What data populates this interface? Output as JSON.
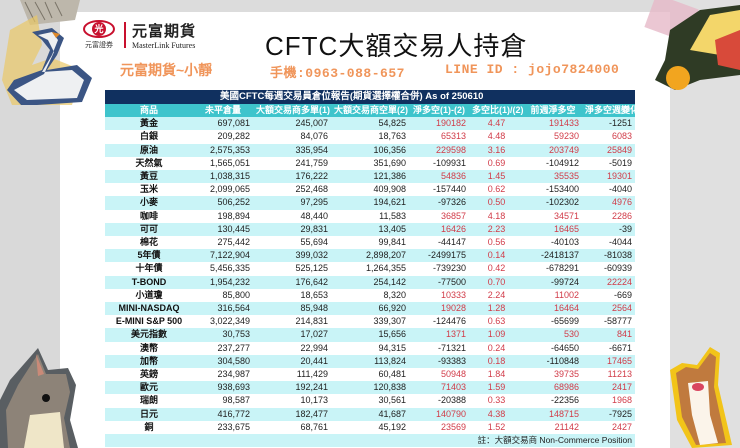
{
  "header": {
    "logo": {
      "mark_text": "光",
      "mark_sub": "元富證券",
      "name_cn": "元富期貨",
      "name_en": "MasterLink Futures"
    },
    "title": "CFTC大額交易人持倉",
    "agent": "元富期貨~小靜",
    "phone": "手機:0963-088-657",
    "line_id": "LINE ID : jojo7824000"
  },
  "table": {
    "caption": "美國CFTC每週交易員倉位報告(期貨選擇權合併) As of  250610",
    "columns": [
      "商品",
      "未平倉量",
      "大額交易商多單(1)",
      "大額交易商空單(2)",
      "淨多空(1)-(2)",
      "多空比(1)/(2)",
      "前週淨多空",
      "淨多空週變化"
    ],
    "rows": [
      {
        "name": "黃金",
        "oi": "697,081",
        "long": "245,007",
        "short": "54,825",
        "net": "190182",
        "ratio": "4.47",
        "prev": "191433",
        "chg": "-1251"
      },
      {
        "name": "白銀",
        "oi": "209,282",
        "long": "84,076",
        "short": "18,763",
        "net": "65313",
        "ratio": "4.48",
        "prev": "59230",
        "chg": "6083"
      },
      {
        "name": "原油",
        "oi": "2,575,353",
        "long": "335,954",
        "short": "106,356",
        "net": "229598",
        "ratio": "3.16",
        "prev": "203749",
        "chg": "25849"
      },
      {
        "name": "天然氣",
        "oi": "1,565,051",
        "long": "241,759",
        "short": "351,690",
        "net": "-109931",
        "ratio": "0.69",
        "prev": "-104912",
        "chg": "-5019"
      },
      {
        "name": "黃豆",
        "oi": "1,038,315",
        "long": "176,222",
        "short": "121,386",
        "net": "54836",
        "ratio": "1.45",
        "prev": "35535",
        "chg": "19301"
      },
      {
        "name": "玉米",
        "oi": "2,099,065",
        "long": "252,468",
        "short": "409,908",
        "net": "-157440",
        "ratio": "0.62",
        "prev": "-153400",
        "chg": "-4040"
      },
      {
        "name": "小麥",
        "oi": "506,252",
        "long": "97,295",
        "short": "194,621",
        "net": "-97326",
        "ratio": "0.50",
        "prev": "-102302",
        "chg": "4976"
      },
      {
        "name": "咖啡",
        "oi": "198,894",
        "long": "48,440",
        "short": "11,583",
        "net": "36857",
        "ratio": "4.18",
        "prev": "34571",
        "chg": "2286"
      },
      {
        "name": "可可",
        "oi": "130,445",
        "long": "29,831",
        "short": "13,405",
        "net": "16426",
        "ratio": "2.23",
        "prev": "16465",
        "chg": "-39"
      },
      {
        "name": "棉花",
        "oi": "275,442",
        "long": "55,694",
        "short": "99,841",
        "net": "-44147",
        "ratio": "0.56",
        "prev": "-40103",
        "chg": "-4044"
      },
      {
        "name": "5年債",
        "oi": "7,122,904",
        "long": "399,032",
        "short": "2,898,207",
        "net": "-2499175",
        "ratio": "0.14",
        "prev": "-2418137",
        "chg": "-81038"
      },
      {
        "name": "十年債",
        "oi": "5,456,335",
        "long": "525,125",
        "short": "1,264,355",
        "net": "-739230",
        "ratio": "0.42",
        "prev": "-678291",
        "chg": "-60939"
      },
      {
        "name": "T-BOND",
        "oi": "1,954,232",
        "long": "176,642",
        "short": "254,142",
        "net": "-77500",
        "ratio": "0.70",
        "prev": "-99724",
        "chg": "22224"
      },
      {
        "name": "小道瓊",
        "oi": "85,800",
        "long": "18,653",
        "short": "8,320",
        "net": "10333",
        "ratio": "2.24",
        "prev": "11002",
        "chg": "-669"
      },
      {
        "name": "MINI-NASDAQ",
        "oi": "316,564",
        "long": "85,948",
        "short": "66,920",
        "net": "19028",
        "ratio": "1.28",
        "prev": "16464",
        "chg": "2564"
      },
      {
        "name": "E-MINI S&P 500",
        "oi": "3,022,349",
        "long": "214,831",
        "short": "339,307",
        "net": "-124476",
        "ratio": "0.63",
        "prev": "-65699",
        "chg": "-58777"
      },
      {
        "name": "美元指數",
        "oi": "30,753",
        "long": "17,027",
        "short": "15,656",
        "net": "1371",
        "ratio": "1.09",
        "prev": "530",
        "chg": "841"
      },
      {
        "name": "澳幣",
        "oi": "237,277",
        "long": "22,994",
        "short": "94,315",
        "net": "-71321",
        "ratio": "0.24",
        "prev": "-64650",
        "chg": "-6671"
      },
      {
        "name": "加幣",
        "oi": "304,580",
        "long": "20,441",
        "short": "113,824",
        "net": "-93383",
        "ratio": "0.18",
        "prev": "-110848",
        "chg": "17465"
      },
      {
        "name": "英鎊",
        "oi": "234,987",
        "long": "111,429",
        "short": "60,481",
        "net": "50948",
        "ratio": "1.84",
        "prev": "39735",
        "chg": "11213"
      },
      {
        "name": "歐元",
        "oi": "938,693",
        "long": "192,241",
        "short": "120,838",
        "net": "71403",
        "ratio": "1.59",
        "prev": "68986",
        "chg": "2417"
      },
      {
        "name": "瑞朗",
        "oi": "98,587",
        "long": "10,173",
        "short": "30,561",
        "net": "-20388",
        "ratio": "0.33",
        "prev": "-22356",
        "chg": "1968"
      },
      {
        "name": "日元",
        "oi": "416,772",
        "long": "182,477",
        "short": "41,687",
        "net": "140790",
        "ratio": "4.38",
        "prev": "148715",
        "chg": "-7925"
      },
      {
        "name": "銅",
        "oi": "233,675",
        "long": "68,761",
        "short": "45,192",
        "net": "23569",
        "ratio": "1.52",
        "prev": "21142",
        "chg": "2427"
      }
    ],
    "note": "註：大額交易商 Non-Commerce Position"
  },
  "colors": {
    "caption_bg": "#10305f",
    "header_bg": "#3ec4cc",
    "row_alt_bg": "#c9f4f7",
    "positive": "#d13b48",
    "contact": "#f0955a",
    "logo_red": "#c8102e"
  }
}
